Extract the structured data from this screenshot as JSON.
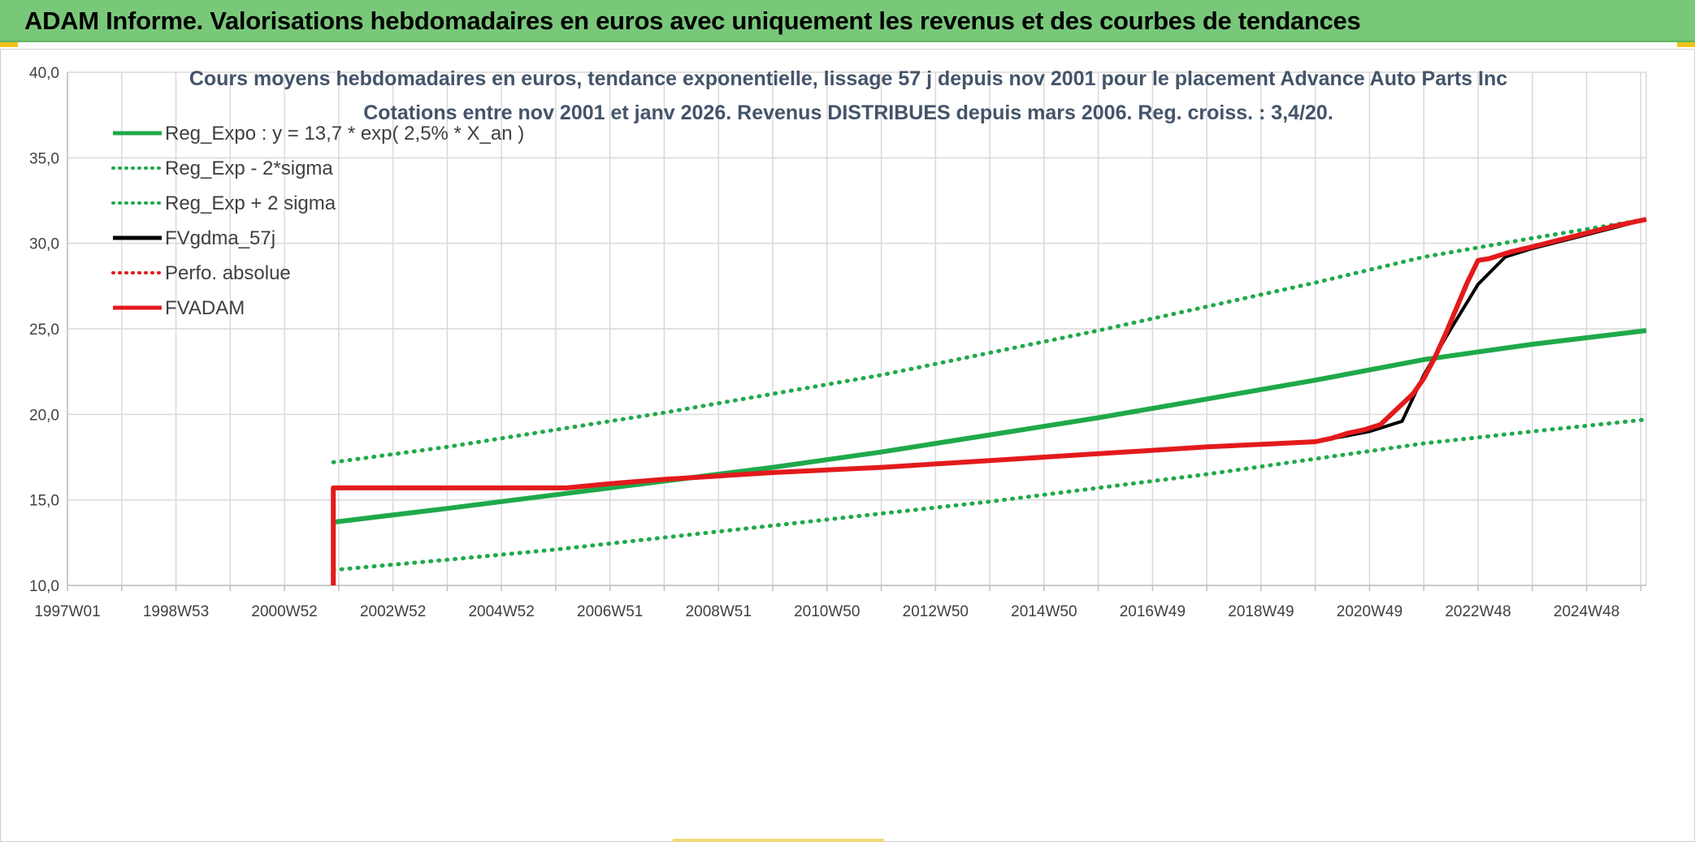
{
  "banner": {
    "title": "ADAM Informe. Valorisations hebdomadaires en euros avec uniquement les revenus et des courbes de tendances",
    "color": "#79c87a"
  },
  "chart_data": {
    "type": "line",
    "title_line1": "Cours moyens hebdomadaires en euros, tendance exponentielle, lissage 57 j depuis nov 2001 pour le placement Advance Auto Parts Inc",
    "title_line2": "Cotations entre nov 2001 et janv 2026. Revenus DISTRIBUES depuis mars 2006. Reg. croiss. : 3,4/20.",
    "xlabel": "",
    "ylabel": "",
    "ylim": [
      10,
      40
    ],
    "xlim": [
      1997.0,
      2026.1
    ],
    "y_ticks": [
      "10,0",
      "15,0",
      "20,0",
      "25,0",
      "30,0",
      "35,0",
      "40,0"
    ],
    "x_ticks": [
      {
        "label": "1997W01",
        "x": 1997.0
      },
      {
        "label": "1998W53",
        "x": 1999.0
      },
      {
        "label": "2000W52",
        "x": 2001.0
      },
      {
        "label": "2002W52",
        "x": 2003.0
      },
      {
        "label": "2004W52",
        "x": 2005.0
      },
      {
        "label": "2006W51",
        "x": 2007.0
      },
      {
        "label": "2008W51",
        "x": 2009.0
      },
      {
        "label": "2010W50",
        "x": 2011.0
      },
      {
        "label": "2012W50",
        "x": 2013.0
      },
      {
        "label": "2014W50",
        "x": 2015.0
      },
      {
        "label": "2016W49",
        "x": 2017.0
      },
      {
        "label": "2018W49",
        "x": 2019.0
      },
      {
        "label": "2020W49",
        "x": 2021.0
      },
      {
        "label": "2022W48",
        "x": 2023.0
      },
      {
        "label": "2024W48",
        "x": 2025.0
      }
    ],
    "grid": true,
    "legend_position": "top-left",
    "series": [
      {
        "name": "Reg_Expo : y = 13,7 * exp( 2,5% *  X_an )",
        "color": "#1fa94a",
        "style": "solid",
        "width": 6,
        "x": [
          2001.9,
          2004,
          2006,
          2008,
          2010,
          2012,
          2014,
          2016,
          2018,
          2020,
          2022,
          2024,
          2026.1
        ],
        "y": [
          13.7,
          14.5,
          15.3,
          16.1,
          16.9,
          17.8,
          18.8,
          19.8,
          20.9,
          22.0,
          23.2,
          24.1,
          24.9
        ]
      },
      {
        "name": "Reg_Exp - 2*sigma",
        "color": "#1fa94a",
        "style": "dotted",
        "width": 5,
        "x": [
          2001.9,
          2004,
          2006,
          2008,
          2010,
          2012,
          2014,
          2016,
          2018,
          2020,
          2022,
          2024,
          2026.1
        ],
        "y": [
          10.9,
          11.5,
          12.1,
          12.8,
          13.5,
          14.2,
          14.9,
          15.7,
          16.5,
          17.4,
          18.3,
          19.0,
          19.7
        ]
      },
      {
        "name": "Reg_Exp + 2 sigma",
        "color": "#1fa94a",
        "style": "dotted",
        "width": 5,
        "x": [
          2001.9,
          2004,
          2006,
          2008,
          2010,
          2012,
          2014,
          2016,
          2018,
          2020,
          2022,
          2024,
          2026.1
        ],
        "y": [
          17.2,
          18.1,
          19.1,
          20.1,
          21.2,
          22.3,
          23.6,
          24.9,
          26.3,
          27.7,
          29.2,
          30.3,
          31.4
        ]
      },
      {
        "name": "FVgdma_57j",
        "color": "#000000",
        "style": "solid",
        "width": 4,
        "x": [
          2001.9,
          2006.2,
          2008,
          2010,
          2012,
          2014,
          2016,
          2018,
          2020,
          2021.0,
          2021.6,
          2022.0,
          2022.5,
          2023.0,
          2023.5,
          2024,
          2025,
          2026.1
        ],
        "y": [
          15.7,
          15.7,
          16.2,
          16.6,
          16.9,
          17.3,
          17.7,
          18.1,
          18.4,
          19.0,
          19.6,
          22.3,
          25.0,
          27.6,
          29.2,
          29.7,
          30.5,
          31.4
        ]
      },
      {
        "name": "Perfo. absolue",
        "color": "#e31a1c",
        "style": "dotted",
        "width": 3,
        "x": [],
        "y": []
      },
      {
        "name": "FVADAM",
        "color": "#e31a1c",
        "style": "solid",
        "width": 6,
        "x": [
          2001.9,
          2001.9,
          2006.2,
          2007,
          2008,
          2009,
          2010,
          2011,
          2012,
          2013,
          2014,
          2015,
          2016,
          2017,
          2018,
          2019,
          2020,
          2020.3,
          2020.6,
          2020.9,
          2021.2,
          2021.5,
          2021.8,
          2022.0,
          2022.2,
          2022.4,
          2022.6,
          2022.8,
          2023.0,
          2023.2,
          2023.4,
          2023.6,
          2024,
          2024.5,
          2025,
          2025.5,
          2026.1
        ],
        "y": [
          10.0,
          15.7,
          15.7,
          15.95,
          16.2,
          16.4,
          16.6,
          16.75,
          16.9,
          17.1,
          17.3,
          17.5,
          17.7,
          17.9,
          18.1,
          18.25,
          18.4,
          18.6,
          18.9,
          19.1,
          19.4,
          20.3,
          21.2,
          22.1,
          23.3,
          24.7,
          26.2,
          27.7,
          29.0,
          29.1,
          29.3,
          29.5,
          29.8,
          30.2,
          30.6,
          31.0,
          31.4
        ]
      }
    ]
  }
}
